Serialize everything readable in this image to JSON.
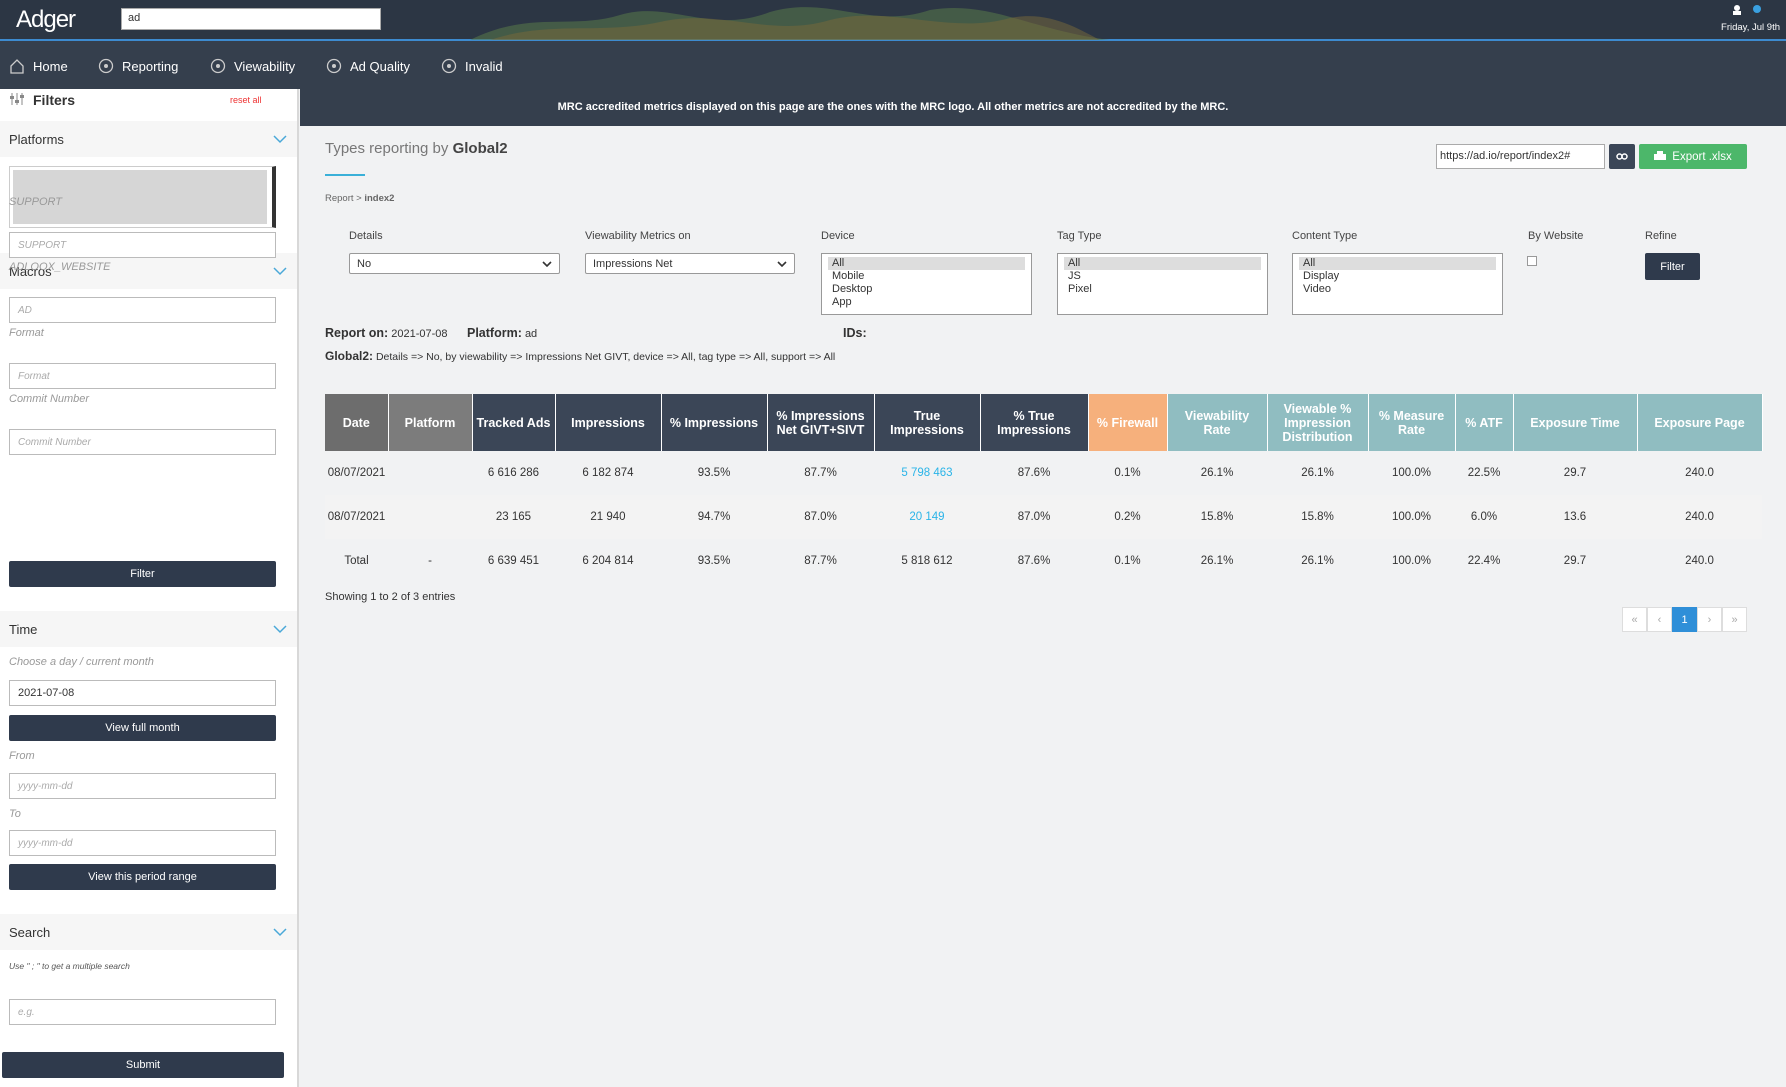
{
  "header": {
    "logo": "Adger",
    "account": "ad",
    "date": "Friday, Jul 9th"
  },
  "nav": [
    "Home",
    "Reporting",
    "Viewability",
    "Ad Quality",
    "Invalid"
  ],
  "sidebar": {
    "title": "Filters",
    "reset": "reset all",
    "platforms": {
      "title": "Platforms"
    },
    "macros": {
      "title": "Macros",
      "fields": [
        {
          "label": "SUPPORT",
          "placeholder": "SUPPORT"
        },
        {
          "label": "ADLOOX_WEBSITE",
          "placeholder": "AD"
        },
        {
          "label": "Format",
          "placeholder": "Format"
        },
        {
          "label": "Commit Number",
          "placeholder": "Commit Number"
        }
      ],
      "button": "Filter"
    },
    "time": {
      "title": "Time",
      "hint": "Choose a day / current month",
      "day": "2021-07-08",
      "month_button": "View full month",
      "from_label": "From",
      "from_placeholder": "yyyy-mm-dd",
      "to_label": "To",
      "to_placeholder": "yyyy-mm-dd",
      "range_button": "View this period range"
    },
    "search": {
      "title": "Search",
      "hint": "Use \" ; \" to get a multiple search",
      "placeholder": "e.g.",
      "button": "Submit"
    }
  },
  "banner": "MRC accredited metrics displayed on this page are the ones with the MRC logo. All other metrics are not accredited by the MRC.",
  "report": {
    "title": "Types reporting by",
    "title_strong": "Global2",
    "url": "https://ad.io/report/index2#",
    "export": "Export .xlsx",
    "breadcrumb": {
      "parent": "Report >",
      "current": "index2"
    },
    "filters": {
      "details": {
        "label": "Details",
        "value": "No"
      },
      "viewability": {
        "label": "Viewability Metrics on",
        "value": "Impressions Net"
      },
      "device": {
        "label": "Device",
        "options": [
          "All",
          "Mobile",
          "Desktop",
          "App"
        ]
      },
      "tag_type": {
        "label": "Tag Type",
        "options": [
          "All",
          "JS",
          "Pixel"
        ]
      },
      "content_type": {
        "label": "Content Type",
        "options": [
          "All",
          "Display",
          "Video"
        ]
      },
      "by_website": {
        "label": "By Website"
      },
      "refine": {
        "label": "Refine",
        "button": "Filter"
      }
    },
    "meta": {
      "report_on_label": "Report on:",
      "report_on": "2021-07-08",
      "platform_label": "Platform:",
      "platform": "ad",
      "ids_label": "IDs:",
      "summary_label": "Global2:",
      "summary": "Details => No, by viewability => Impressions Net GIVT, device => All, tag type => All, support => All"
    }
  },
  "table": {
    "headers": [
      "Date",
      "Platform",
      "Tracked Ads",
      "Impressions",
      "% Impressions",
      "% Impressions Net GIVT+SIVT",
      "True Impressions",
      "% True Impressions",
      "% Firewall",
      "Viewability Rate",
      "Viewable % Impression Distribution",
      "% Measure Rate",
      "% ATF",
      "Exposure Time",
      "Exposure Page"
    ],
    "rows": [
      [
        "08/07/2021",
        null,
        "6 616 286",
        "6 182 874",
        "93.5%",
        "87.7%",
        "5 798 463",
        "87.6%",
        "0.1%",
        "26.1%",
        "26.1%",
        "100.0%",
        "22.5%",
        "29.7",
        "240.0"
      ],
      [
        "08/07/2021",
        null,
        "23 165",
        "21 940",
        "94.7%",
        "87.0%",
        "20 149",
        "87.0%",
        "0.2%",
        "15.8%",
        "15.8%",
        "100.0%",
        "6.0%",
        "13.6",
        "240.0"
      ],
      [
        "Total",
        "-",
        "6 639 451",
        "6 204 814",
        "93.5%",
        "87.7%",
        "5 818 612",
        "87.6%",
        "0.1%",
        "26.1%",
        "26.1%",
        "100.0%",
        "22.4%",
        "29.7",
        "240.0"
      ]
    ]
  },
  "footer": {
    "showing": "Showing 1 to 2 of 3 entries",
    "pagination": [
      "«",
      "‹",
      "1",
      "›",
      "»"
    ]
  }
}
